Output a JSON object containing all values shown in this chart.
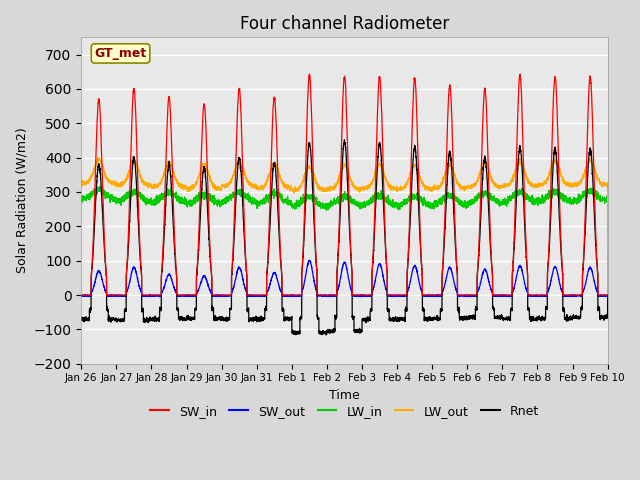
{
  "title": "Four channel Radiometer",
  "xlabel": "Time",
  "ylabel": "Solar Radiation (W/m2)",
  "ylim": [
    -200,
    750
  ],
  "yticks": [
    -200,
    -100,
    0,
    100,
    200,
    300,
    400,
    500,
    600,
    700
  ],
  "date_labels": [
    "Jan 26",
    "Jan 27",
    "Jan 28",
    "Jan 29",
    "Jan 30",
    "Jan 31",
    "Feb 1",
    "Feb 2",
    "Feb 3",
    "Feb 4",
    "Feb 5",
    "Feb 6",
    "Feb 7",
    "Feb 8",
    "Feb 9",
    "Feb 10"
  ],
  "station_label": "GT_met",
  "colors": {
    "SW_in": "#ff0000",
    "SW_out": "#0000ff",
    "LW_in": "#00cc00",
    "LW_out": "#ffaa00",
    "Rnet": "#000000"
  },
  "bg_color": "#d8d8d8",
  "plot_bg_color": "#e8e8e8",
  "n_days": 15,
  "points_per_day": 288,
  "SW_in_peak": [
    570,
    600,
    575,
    555,
    600,
    575,
    640,
    635,
    635,
    630,
    610,
    600,
    640,
    635,
    635,
    650
  ],
  "SW_out_peak": [
    70,
    80,
    60,
    55,
    80,
    65,
    100,
    95,
    90,
    85,
    80,
    75,
    85,
    82,
    80,
    90
  ],
  "LW_in_base": [
    275,
    270,
    268,
    263,
    270,
    265,
    255,
    258,
    260,
    258,
    260,
    265,
    268,
    270,
    272,
    275
  ],
  "LW_out_base": [
    325,
    320,
    315,
    310,
    318,
    312,
    305,
    308,
    310,
    308,
    310,
    315,
    318,
    320,
    322,
    325
  ],
  "Rnet_night": [
    -70,
    -72,
    -70,
    -68,
    -70,
    -69,
    -110,
    -105,
    -72,
    -70,
    -68,
    -65,
    -70,
    -68,
    -65,
    -65
  ],
  "Rnet_peak": [
    380,
    400,
    380,
    370,
    400,
    385,
    440,
    445,
    440,
    430,
    415,
    400,
    430,
    425,
    425,
    440
  ]
}
